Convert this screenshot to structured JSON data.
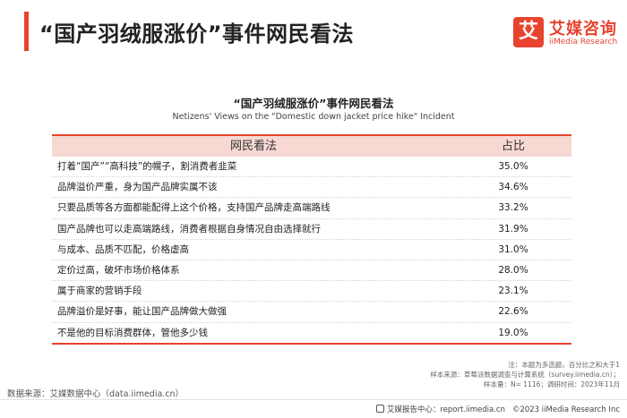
{
  "header": {
    "title": "“国产羽绒服涨价”事件网民看法",
    "accent_color": "#e8432e"
  },
  "logo": {
    "mark": "艾",
    "name_cn": "艾媒咨询",
    "name_en": "iiMedia Research"
  },
  "chart_data": {
    "type": "table",
    "title": "“国产羽绒服涨价”事件网民看法",
    "subtitle": "Netizens' Views on the \"Domestic down jacket price hike\" Incident",
    "columns": [
      "网民看法",
      "占比"
    ],
    "rows": [
      {
        "opinion": "打着“国产”“高科技”的幌子，割消费者韭菜",
        "share": "35.0%"
      },
      {
        "opinion": "品牌溢价严重，身为国产品牌实属不该",
        "share": "34.6%"
      },
      {
        "opinion": "只要品质等各方面都能配得上这个价格，支持国产品牌走高端路线",
        "share": "33.2%"
      },
      {
        "opinion": "国产品牌也可以走高端路线，消费者根据自身情况自由选择就行",
        "share": "31.9%"
      },
      {
        "opinion": "与成本、品质不匹配，价格虚高",
        "share": "31.0%"
      },
      {
        "opinion": "定价过高，破坏市场价格体系",
        "share": "28.0%"
      },
      {
        "opinion": "属于商家的营销手段",
        "share": "23.1%"
      },
      {
        "opinion": "品牌溢价是好事，能让国产品牌做大做强",
        "share": "22.6%"
      },
      {
        "opinion": "不是他的目标消费群体，管他多少钱",
        "share": "19.0%"
      }
    ],
    "values": [
      35.0,
      34.6,
      33.2,
      31.9,
      31.0,
      28.0,
      23.1,
      22.6,
      19.0
    ],
    "header_color": "#f7d8d3"
  },
  "notes": {
    "line1": "注：本题为多选题，百分比之和大于1",
    "line2": "样本来源：草莓派数据调查与计算系统（survey.iimedia.cn）；",
    "line3": "样本量：N= 1116；调研时间：2023年11月"
  },
  "source": "数据来源：艾媒数据中心（data.iimedia.cn）",
  "footer": {
    "icon": "report-icon",
    "center": "艾媒报告中心：report.iimedia.cn",
    "copyright": "©2023  iiMedia Research  Inc"
  }
}
